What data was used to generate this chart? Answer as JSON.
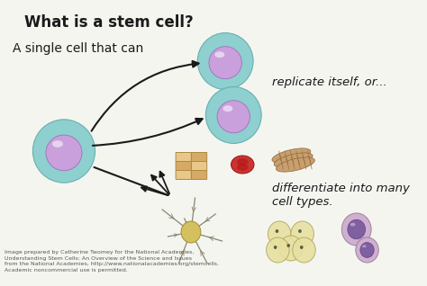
{
  "bg_color": "#f5f5f0",
  "title_text": "What is a stem cell?",
  "subtitle_text": "A single cell that can",
  "replicate_text": "replicate itself, or...",
  "differentiate_text": "differentiate into many\ncell types.",
  "caption_text": "Image prepared by Catherine Twomey for the National Academies,\nUnderstanding Stem Cells: An Overview of the Science and Issues\nfrom the National Academies, http://www.nationalacademies.org/stemcells.\nAcademic noncommercial use is permitted.",
  "stem_cell_outer_color": "#8ecfcf",
  "stem_cell_inner_color": "#c9a0dc",
  "stem_cell_highlight": "#ffffff",
  "arrow_color": "#1a1a1a",
  "text_color": "#1a1a1a",
  "caption_color": "#555555"
}
